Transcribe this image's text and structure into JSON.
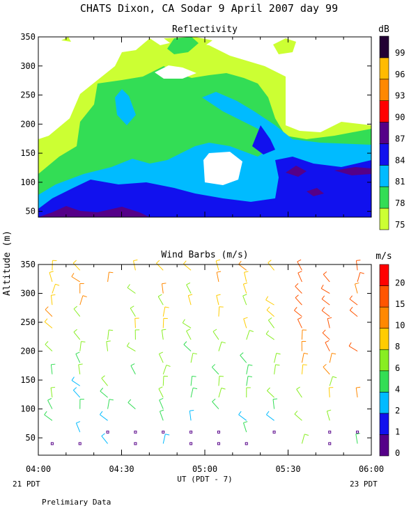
{
  "header": {
    "title": "CHATS Dixon, CA  Sodar   9 April 2007  day  99"
  },
  "colors": {
    "reflectivity_levels": [
      "#ccff33",
      "#33dd55",
      "#00bbff",
      "#1111ee",
      "#550088",
      "#ff0000",
      "#ff8800",
      "#ffbb00",
      "#220033"
    ],
    "wind_levels": [
      "#550088",
      "#1111ee",
      "#00bbff",
      "#33dd55",
      "#88ee22",
      "#ffcc00",
      "#ff8800",
      "#ff5500",
      "#ff0000"
    ]
  },
  "labels": {
    "ylabel": "Altitude (m)",
    "xlabel": "UT  (PDT - 7)",
    "date_left": "21 PDT",
    "date_right": "23 PDT",
    "footnote": "Prelimiary Data"
  },
  "chart_data": [
    {
      "type": "heatmap",
      "title": "Reflectivity",
      "colorbar_label": "dB",
      "colorbar_ticks": [
        "75",
        "78",
        "81",
        "84",
        "87",
        "90",
        "93",
        "96",
        "99"
      ],
      "y_ticks": [
        "50",
        "100",
        "150",
        "200",
        "250",
        "300",
        "350"
      ],
      "xlim": [
        "04:00",
        "06:00"
      ],
      "ylim": [
        40,
        350
      ],
      "contour_levels_dB": [
        75,
        78,
        81,
        84,
        87
      ],
      "note": "contour fields (white = below 75 dB)"
    },
    {
      "type": "scatter",
      "title": "Wind Barbs (m/s)",
      "colorbar_label": "m/s",
      "colorbar_ticks": [
        "0",
        "1",
        "2",
        "4",
        "6",
        "8",
        "10",
        "15",
        "20"
      ],
      "y_ticks": [
        "50",
        "100",
        "150",
        "200",
        "250",
        "300",
        "350"
      ],
      "x_ticks": [
        "04:00",
        "04:30",
        "05:00",
        "05:30",
        "06:00"
      ],
      "xlim": [
        "04:00",
        "06:00"
      ],
      "ylim": [
        20,
        350
      ],
      "barb_times": [
        "04:05",
        "04:15",
        "04:25",
        "04:35",
        "04:45",
        "04:55",
        "05:05",
        "05:15",
        "05:25",
        "05:35",
        "05:45",
        "05:55"
      ],
      "barb_altitudes": [
        40,
        60,
        80,
        100,
        120,
        140,
        160,
        180,
        200,
        220,
        240,
        260,
        280,
        300,
        320,
        340
      ]
    }
  ]
}
